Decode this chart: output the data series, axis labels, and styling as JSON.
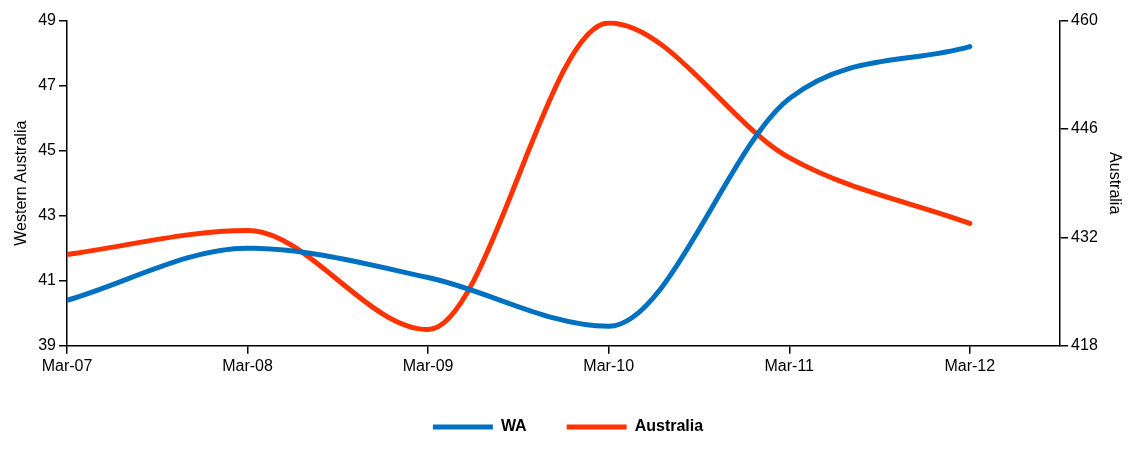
{
  "chart_data": {
    "type": "line",
    "ylabel": "Western Australia",
    "y2label": "Australia",
    "x": [
      "2007-03",
      "2008-03",
      "2009-03",
      "2010-03",
      "2011-03",
      "2012-03"
    ],
    "xlim": [
      "2007-03",
      "2012-09"
    ],
    "xticks": [
      {
        "value": "2007-03",
        "label": "Mar-07"
      },
      {
        "value": "2008-03",
        "label": "Mar-08"
      },
      {
        "value": "2009-03",
        "label": "Mar-09"
      },
      {
        "value": "2010-03",
        "label": "Mar-10"
      },
      {
        "value": "2011-03",
        "label": "Mar-11"
      },
      {
        "value": "2012-03",
        "label": "Mar-12"
      }
    ],
    "ylim": [
      39,
      49
    ],
    "yticks": [
      39,
      41,
      43,
      45,
      47,
      49
    ],
    "y2lim": [
      418,
      460
    ],
    "y2ticks": [
      418,
      432,
      446,
      460
    ],
    "series": [
      {
        "name": "WA",
        "color": "#0070c0",
        "values": [
          40.4,
          42.0,
          41.1,
          39.6,
          46.6,
          48.2
        ]
      },
      {
        "name": "Australia",
        "color": "#ff3300",
        "axis": "y2",
        "values": [
          429.8,
          432.9,
          420.1,
          459.7,
          442.3,
          433.8
        ]
      }
    ],
    "grid": false,
    "legend": "bottom",
    "marker": "none",
    "line_style": "solid"
  }
}
